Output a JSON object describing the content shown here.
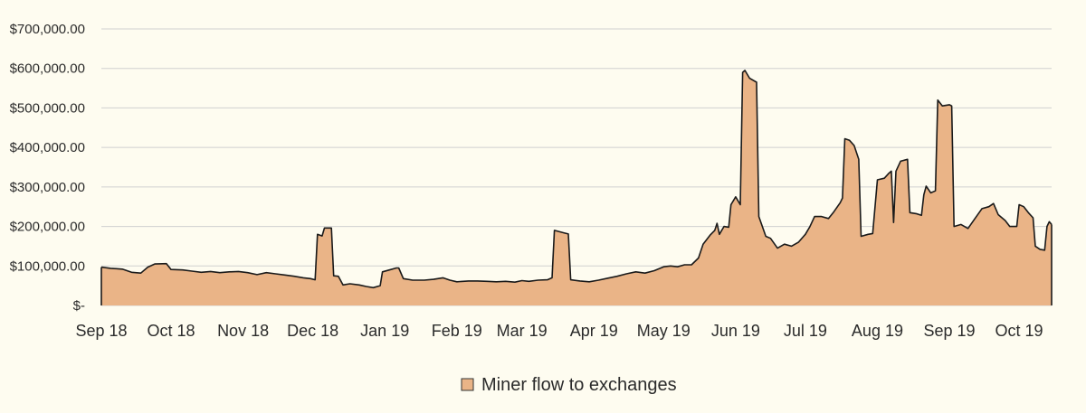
{
  "colors": {
    "background": "#fefcf0",
    "area_fill": "#eab487",
    "line": "#1a1a1a",
    "grid": "#d0d0d0"
  },
  "chart_data": {
    "type": "area",
    "title": "",
    "xlabel": "",
    "ylabel": "",
    "ylim": [
      0,
      700000
    ],
    "grid": true,
    "legend_position": "bottom",
    "y_ticks": [
      {
        "value": 0,
        "label": "$-"
      },
      {
        "value": 100000,
        "label": "$100,000.00"
      },
      {
        "value": 200000,
        "label": "$200,000.00"
      },
      {
        "value": 300000,
        "label": "$300,000.00"
      },
      {
        "value": 400000,
        "label": "$400,000.00"
      },
      {
        "value": 500000,
        "label": "$500,000.00"
      },
      {
        "value": 600000,
        "label": "$600,000.00"
      },
      {
        "value": 700000,
        "label": "$700,000.00"
      }
    ],
    "x_ticks": [
      {
        "date": "2018-09-01",
        "label": "Sep 18"
      },
      {
        "date": "2018-10-01",
        "label": "Oct 18"
      },
      {
        "date": "2018-11-01",
        "label": "Nov 18"
      },
      {
        "date": "2018-12-01",
        "label": "Dec 18"
      },
      {
        "date": "2019-01-01",
        "label": "Jan 19"
      },
      {
        "date": "2019-02-01",
        "label": "Feb 19"
      },
      {
        "date": "2019-03-01",
        "label": "Mar 19"
      },
      {
        "date": "2019-04-01",
        "label": "Apr 19"
      },
      {
        "date": "2019-05-01",
        "label": "May 19"
      },
      {
        "date": "2019-06-01",
        "label": "Jun 19"
      },
      {
        "date": "2019-07-01",
        "label": "Jul 19"
      },
      {
        "date": "2019-08-01",
        "label": "Aug 19"
      },
      {
        "date": "2019-09-01",
        "label": "Sep 19"
      },
      {
        "date": "2019-10-01",
        "label": "Oct 19"
      }
    ],
    "x_range": [
      "2018-09-01",
      "2019-10-15"
    ],
    "series": [
      {
        "name": "Miner flow to exchanges",
        "points": [
          [
            "2018-09-01",
            97000
          ],
          [
            "2018-09-05",
            94000
          ],
          [
            "2018-09-10",
            92000
          ],
          [
            "2018-09-14",
            84000
          ],
          [
            "2018-09-18",
            82000
          ],
          [
            "2018-09-21",
            97000
          ],
          [
            "2018-09-24",
            105000
          ],
          [
            "2018-09-29",
            106000
          ],
          [
            "2018-10-01",
            91000
          ],
          [
            "2018-10-06",
            90000
          ],
          [
            "2018-10-10",
            87000
          ],
          [
            "2018-10-14",
            84000
          ],
          [
            "2018-10-18",
            86000
          ],
          [
            "2018-10-22",
            83000
          ],
          [
            "2018-10-26",
            85000
          ],
          [
            "2018-10-30",
            86000
          ],
          [
            "2018-11-03",
            83000
          ],
          [
            "2018-11-07",
            78000
          ],
          [
            "2018-11-11",
            83000
          ],
          [
            "2018-11-15",
            80000
          ],
          [
            "2018-11-19",
            77000
          ],
          [
            "2018-11-23",
            74000
          ],
          [
            "2018-11-27",
            70000
          ],
          [
            "2018-11-30",
            68000
          ],
          [
            "2018-12-02",
            65000
          ],
          [
            "2018-12-03",
            180000
          ],
          [
            "2018-12-05",
            176000
          ],
          [
            "2018-12-06",
            196000
          ],
          [
            "2018-12-09",
            196000
          ],
          [
            "2018-12-10",
            75000
          ],
          [
            "2018-12-12",
            74000
          ],
          [
            "2018-12-14",
            52000
          ],
          [
            "2018-12-17",
            55000
          ],
          [
            "2018-12-21",
            52000
          ],
          [
            "2018-12-24",
            48000
          ],
          [
            "2018-12-27",
            45000
          ],
          [
            "2018-12-30",
            50000
          ],
          [
            "2018-12-31",
            85000
          ],
          [
            "2019-01-03",
            90000
          ],
          [
            "2019-01-06",
            95000
          ],
          [
            "2019-01-07",
            95000
          ],
          [
            "2019-01-09",
            68000
          ],
          [
            "2019-01-13",
            64000
          ],
          [
            "2019-01-18",
            64000
          ],
          [
            "2019-01-22",
            66000
          ],
          [
            "2019-01-26",
            70000
          ],
          [
            "2019-01-29",
            64000
          ],
          [
            "2019-02-01",
            60000
          ],
          [
            "2019-02-06",
            62000
          ],
          [
            "2019-02-10",
            62000
          ],
          [
            "2019-02-14",
            61000
          ],
          [
            "2019-02-18",
            60000
          ],
          [
            "2019-02-22",
            61000
          ],
          [
            "2019-02-26",
            59000
          ],
          [
            "2019-03-01",
            63000
          ],
          [
            "2019-03-04",
            61000
          ],
          [
            "2019-03-08",
            64000
          ],
          [
            "2019-03-12",
            65000
          ],
          [
            "2019-03-14",
            70000
          ],
          [
            "2019-03-15",
            190000
          ],
          [
            "2019-03-19",
            184000
          ],
          [
            "2019-03-21",
            181000
          ],
          [
            "2019-03-22",
            65000
          ],
          [
            "2019-03-26",
            62000
          ],
          [
            "2019-03-30",
            60000
          ],
          [
            "2019-04-03",
            64000
          ],
          [
            "2019-04-07",
            69000
          ],
          [
            "2019-04-11",
            74000
          ],
          [
            "2019-04-15",
            80000
          ],
          [
            "2019-04-19",
            85000
          ],
          [
            "2019-04-23",
            82000
          ],
          [
            "2019-04-27",
            88000
          ],
          [
            "2019-05-01",
            98000
          ],
          [
            "2019-05-04",
            100000
          ],
          [
            "2019-05-07",
            98000
          ],
          [
            "2019-05-10",
            103000
          ],
          [
            "2019-05-13",
            103000
          ],
          [
            "2019-05-16",
            120000
          ],
          [
            "2019-05-18",
            155000
          ],
          [
            "2019-05-21",
            178000
          ],
          [
            "2019-05-23",
            190000
          ],
          [
            "2019-05-24",
            208000
          ],
          [
            "2019-05-25",
            180000
          ],
          [
            "2019-05-27",
            200000
          ],
          [
            "2019-05-29",
            198000
          ],
          [
            "2019-05-30",
            255000
          ],
          [
            "2019-06-01",
            275000
          ],
          [
            "2019-06-03",
            255000
          ],
          [
            "2019-06-04",
            590000
          ],
          [
            "2019-06-05",
            595000
          ],
          [
            "2019-06-07",
            575000
          ],
          [
            "2019-06-10",
            565000
          ],
          [
            "2019-06-11",
            225000
          ],
          [
            "2019-06-14",
            175000
          ],
          [
            "2019-06-16",
            170000
          ],
          [
            "2019-06-19",
            145000
          ],
          [
            "2019-06-22",
            155000
          ],
          [
            "2019-06-25",
            150000
          ],
          [
            "2019-06-28",
            160000
          ],
          [
            "2019-07-01",
            180000
          ],
          [
            "2019-07-03",
            200000
          ],
          [
            "2019-07-05",
            225000
          ],
          [
            "2019-07-08",
            225000
          ],
          [
            "2019-07-11",
            220000
          ],
          [
            "2019-07-13",
            235000
          ],
          [
            "2019-07-16",
            260000
          ],
          [
            "2019-07-17",
            272000
          ],
          [
            "2019-07-18",
            422000
          ],
          [
            "2019-07-20",
            418000
          ],
          [
            "2019-07-22",
            405000
          ],
          [
            "2019-07-24",
            370000
          ],
          [
            "2019-07-25",
            175000
          ],
          [
            "2019-07-28",
            180000
          ],
          [
            "2019-07-30",
            182000
          ],
          [
            "2019-08-01",
            318000
          ],
          [
            "2019-08-04",
            322000
          ],
          [
            "2019-08-06",
            335000
          ],
          [
            "2019-08-07",
            340000
          ],
          [
            "2019-08-08",
            210000
          ],
          [
            "2019-08-09",
            340000
          ],
          [
            "2019-08-11",
            365000
          ],
          [
            "2019-08-14",
            370000
          ],
          [
            "2019-08-15",
            235000
          ],
          [
            "2019-08-18",
            232000
          ],
          [
            "2019-08-20",
            228000
          ],
          [
            "2019-08-21",
            280000
          ],
          [
            "2019-08-22",
            302000
          ],
          [
            "2019-08-24",
            285000
          ],
          [
            "2019-08-26",
            290000
          ],
          [
            "2019-08-27",
            520000
          ],
          [
            "2019-08-29",
            505000
          ],
          [
            "2019-09-01",
            508000
          ],
          [
            "2019-09-02",
            505000
          ],
          [
            "2019-09-03",
            200000
          ],
          [
            "2019-09-06",
            205000
          ],
          [
            "2019-09-09",
            195000
          ],
          [
            "2019-09-12",
            220000
          ],
          [
            "2019-09-15",
            245000
          ],
          [
            "2019-09-18",
            250000
          ],
          [
            "2019-09-20",
            258000
          ],
          [
            "2019-09-22",
            230000
          ],
          [
            "2019-09-25",
            215000
          ],
          [
            "2019-09-27",
            200000
          ],
          [
            "2019-09-30",
            200000
          ],
          [
            "2019-10-01",
            255000
          ],
          [
            "2019-10-03",
            250000
          ],
          [
            "2019-10-05",
            235000
          ],
          [
            "2019-10-07",
            222000
          ],
          [
            "2019-10-08",
            150000
          ],
          [
            "2019-10-10",
            142000
          ],
          [
            "2019-10-12",
            140000
          ],
          [
            "2019-10-13",
            200000
          ],
          [
            "2019-10-14",
            212000
          ],
          [
            "2019-10-15",
            205000
          ]
        ]
      }
    ]
  }
}
